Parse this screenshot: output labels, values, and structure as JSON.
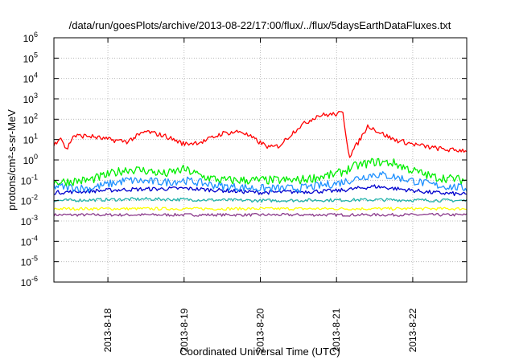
{
  "chart_data": {
    "type": "line",
    "title": "/data/run/goesPlots/archive/2013-08-22/17:00/flux/../flux/5daysEarthDataFluxes.txt",
    "xlabel": "Coordinated Universal Time (UTC)",
    "ylabel": "protons/cm²-s-sr-MeV",
    "yscale": "log",
    "ylim": [
      1e-06,
      1000000.0
    ],
    "xlim": [
      "2013-08-17 07:00",
      "2013-08-22 17:00"
    ],
    "y_ticks": [
      {
        "exp": "-6",
        "value": 1e-06
      },
      {
        "exp": "-5",
        "value": 1e-05
      },
      {
        "exp": "-4",
        "value": 0.0001
      },
      {
        "exp": "-3",
        "value": 0.001
      },
      {
        "exp": "-2",
        "value": 0.01
      },
      {
        "exp": "-1",
        "value": 0.1
      },
      {
        "exp": "0",
        "value": 1
      },
      {
        "exp": "1",
        "value": 10.0
      },
      {
        "exp": "2",
        "value": 100.0
      },
      {
        "exp": "3",
        "value": 1000.0
      },
      {
        "exp": "4",
        "value": 10000.0
      },
      {
        "exp": "5",
        "value": 100000.0
      },
      {
        "exp": "6",
        "value": 1000000.0
      }
    ],
    "y_tick_base": "10",
    "x_ticks": [
      "2013-8-18",
      "2013-8-19",
      "2013-8-20",
      "2013-8-21",
      "2013-8-22"
    ],
    "x_tick_dates": [
      "2013-08-18 00:00",
      "2013-08-19 00:00",
      "2013-08-20 00:00",
      "2013-08-21 00:00",
      "2013-08-22 00:00"
    ],
    "grid": true,
    "legend": "none",
    "series": [
      {
        "color": "#ff0000",
        "noise": 0.12,
        "x": [
          "2013-08-17 07:00",
          "2013-08-17 09:00",
          "2013-08-17 11:00",
          "2013-08-17 13:00",
          "2013-08-17 18:00",
          "2013-08-18 00:00",
          "2013-08-18 06:00",
          "2013-08-18 12:00",
          "2013-08-18 18:00",
          "2013-08-19 00:00",
          "2013-08-19 06:00",
          "2013-08-19 12:00",
          "2013-08-19 18:00",
          "2013-08-20 00:00",
          "2013-08-20 03:00",
          "2013-08-20 06:00",
          "2013-08-20 12:00",
          "2013-08-20 18:00",
          "2013-08-21 00:00",
          "2013-08-21 02:00",
          "2013-08-21 04:00",
          "2013-08-21 07:00",
          "2013-08-21 10:00",
          "2013-08-21 13:00",
          "2013-08-21 18:00",
          "2013-08-22 00:00",
          "2013-08-22 06:00",
          "2013-08-22 12:00",
          "2013-08-22 17:00"
        ],
        "y": [
          5,
          15,
          3,
          15,
          15,
          10,
          8,
          25,
          15,
          6,
          8,
          20,
          25,
          7,
          4,
          5,
          40,
          150,
          180,
          200,
          1.5,
          8,
          50,
          25,
          10,
          6,
          4,
          3,
          3
        ]
      },
      {
        "color": "#00ee00",
        "noise": 0.22,
        "x": [
          "2013-08-17 07:00",
          "2013-08-17 18:00",
          "2013-08-18 06:00",
          "2013-08-18 12:00",
          "2013-08-18 18:00",
          "2013-08-19 00:00",
          "2013-08-19 06:00",
          "2013-08-19 12:00",
          "2013-08-19 18:00",
          "2013-08-20 00:00",
          "2013-08-20 12:00",
          "2013-08-21 00:00",
          "2013-08-21 06:00",
          "2013-08-21 12:00",
          "2013-08-21 18:00",
          "2013-08-22 00:00",
          "2013-08-22 06:00",
          "2013-08-22 17:00"
        ],
        "y": [
          0.08,
          0.1,
          0.35,
          0.3,
          0.2,
          0.35,
          0.15,
          0.1,
          0.1,
          0.1,
          0.1,
          0.2,
          0.5,
          0.8,
          0.7,
          0.3,
          0.15,
          0.1
        ]
      },
      {
        "color": "#1e90ff",
        "noise": 0.2,
        "x": [
          "2013-08-17 07:00",
          "2013-08-17 18:00",
          "2013-08-18 06:00",
          "2013-08-18 18:00",
          "2013-08-19 00:00",
          "2013-08-19 12:00",
          "2013-08-20 00:00",
          "2013-08-20 12:00",
          "2013-08-21 00:00",
          "2013-08-21 06:00",
          "2013-08-21 12:00",
          "2013-08-21 18:00",
          "2013-08-22 06:00",
          "2013-08-22 17:00"
        ],
        "y": [
          0.05,
          0.04,
          0.1,
          0.08,
          0.1,
          0.05,
          0.04,
          0.04,
          0.07,
          0.12,
          0.2,
          0.15,
          0.06,
          0.04
        ]
      },
      {
        "color": "#0000cd",
        "noise": 0.1,
        "x": [
          "2013-08-17 07:00",
          "2013-08-18 06:00",
          "2013-08-19 00:00",
          "2013-08-20 00:00",
          "2013-08-21 00:00",
          "2013-08-21 12:00",
          "2013-08-22 06:00",
          "2013-08-22 17:00"
        ],
        "y": [
          0.025,
          0.035,
          0.04,
          0.025,
          0.03,
          0.05,
          0.025,
          0.02
        ]
      },
      {
        "color": "#20b2aa",
        "noise": 0.08,
        "x": [
          "2013-08-17 07:00",
          "2013-08-18 12:00",
          "2013-08-20 00:00",
          "2013-08-21 12:00",
          "2013-08-22 17:00"
        ],
        "y": [
          0.01,
          0.012,
          0.01,
          0.011,
          0.01
        ]
      },
      {
        "color": "#ffff00",
        "noise": 0.07,
        "x": [
          "2013-08-17 07:00",
          "2013-08-19 00:00",
          "2013-08-21 00:00",
          "2013-08-22 17:00"
        ],
        "y": [
          0.004,
          0.004,
          0.004,
          0.004
        ]
      },
      {
        "color": "#8b3a8b",
        "noise": 0.07,
        "x": [
          "2013-08-17 07:00",
          "2013-08-19 00:00",
          "2013-08-21 00:00",
          "2013-08-22 17:00"
        ],
        "y": [
          0.002,
          0.002,
          0.002,
          0.002
        ]
      }
    ]
  }
}
